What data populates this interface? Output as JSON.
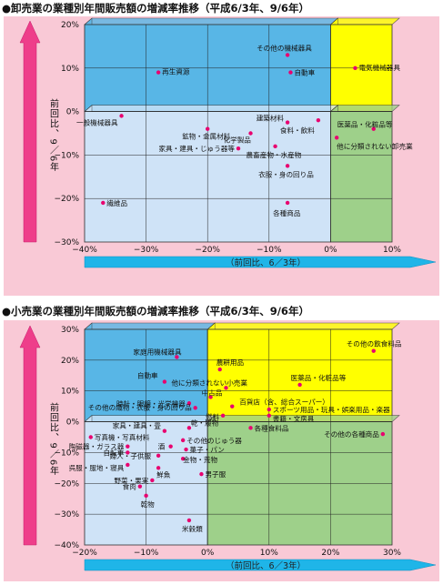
{
  "chart_data": [
    {
      "type": "scatter",
      "title": "●卸売業の業種別年間販売額の増減率推移（平成6/3年、9/6年）",
      "xlabel": "（前回比、6／3年）",
      "ylabel": "前回比、9／6年",
      "xlim": [
        -40,
        10
      ],
      "ylim": [
        -30,
        20
      ],
      "xticks": [
        "−40%",
        "−30%",
        "−20%",
        "−10%",
        "0%",
        "10%"
      ],
      "yticks": [
        "20%",
        "10%",
        "0%",
        "−10%",
        "−20%",
        "−30%"
      ],
      "colors": {
        "q1": "#ffff00",
        "q2": "#58b6e6",
        "q3": "#cfe3f7",
        "q4": "#9ed08a",
        "point": "#e8006f"
      },
      "points": [
        {
          "label": "その他の機械器具",
          "x": -7,
          "y": 13
        },
        {
          "label": "自動車",
          "x": -6.5,
          "y": 9
        },
        {
          "label": "再生資源",
          "x": -28,
          "y": 9
        },
        {
          "label": "電気機械器具",
          "x": 4,
          "y": 10
        },
        {
          "label": "一般機械器具",
          "x": -34,
          "y": -1
        },
        {
          "label": "鉱物・金属材料",
          "x": -20,
          "y": -4
        },
        {
          "label": "建築材料",
          "x": -7,
          "y": -2.5
        },
        {
          "label": "食料・飲料",
          "x": -2,
          "y": -2
        },
        {
          "label": "化学製品",
          "x": -13,
          "y": -5
        },
        {
          "label": "家具・建具・じゅう器等",
          "x": -15,
          "y": -8.5
        },
        {
          "label": "農畜産物・水産物",
          "x": -9,
          "y": -8
        },
        {
          "label": "衣服・身の回り品",
          "x": -7,
          "y": -12.5
        },
        {
          "label": "繊維品",
          "x": -37,
          "y": -21
        },
        {
          "label": "各種商品",
          "x": -7,
          "y": -21
        },
        {
          "label": "医薬品・化粧品等",
          "x": 7,
          "y": -4
        },
        {
          "label": "他に分類されない卸売業",
          "x": 1,
          "y": -6
        }
      ]
    },
    {
      "type": "scatter",
      "title": "●小売業の業種別年間販売額の増減率推移（平成6/3年、9/6年）",
      "xlabel": "（前回比、6／3年）",
      "ylabel": "前回比、9／6年",
      "xlim": [
        -20,
        30
      ],
      "ylim": [
        -40,
        30
      ],
      "xticks": [
        "−20%",
        "−10%",
        "0%",
        "10%",
        "20%",
        "30%"
      ],
      "yticks": [
        "30%",
        "20%",
        "10%",
        "0%",
        "−10%",
        "−20%",
        "−30%",
        "−40%"
      ],
      "colors": {
        "q1": "#ffff00",
        "q2": "#58b6e6",
        "q3": "#cfe3f7",
        "q4": "#9ed08a",
        "point": "#e8006f"
      },
      "points": [
        {
          "label": "その他の飲食料品",
          "x": 27,
          "y": 23
        },
        {
          "label": "家庭用機械器具",
          "x": -5,
          "y": 21
        },
        {
          "label": "農耕用品",
          "x": 2,
          "y": 17
        },
        {
          "label": "自動車",
          "x": -7,
          "y": 13
        },
        {
          "label": "他に分類されない小売業",
          "x": 3,
          "y": 11
        },
        {
          "label": "医薬品・化粧品等",
          "x": 15,
          "y": 12
        },
        {
          "label": "中古品",
          "x": 0.5,
          "y": 8
        },
        {
          "label": "時計・眼鏡・光学機器",
          "x": -3,
          "y": 6
        },
        {
          "label": "百貨店（含、総合スーパー）",
          "x": 4,
          "y": 5
        },
        {
          "label": "その他の織物・衣服・身の回り品",
          "x": -2,
          "y": 4.5
        },
        {
          "label": "スポーツ用品・玩具・娯楽用品・楽器",
          "x": 10,
          "y": 4
        },
        {
          "label": "燃料",
          "x": 2.5,
          "y": 2
        },
        {
          "label": "書籍・文房具",
          "x": 10,
          "y": 2
        },
        {
          "label": "各種食料品",
          "x": 7,
          "y": -2
        },
        {
          "label": "その他の各種商品",
          "x": 28.5,
          "y": -4
        },
        {
          "label": "家具・建具・畳",
          "x": -7,
          "y": -3
        },
        {
          "label": "乾・履物",
          "x": -3,
          "y": -2
        },
        {
          "label": "その他のじゅう器",
          "x": -4,
          "y": -6
        },
        {
          "label": "写真機・写真材料",
          "x": -19,
          "y": -5
        },
        {
          "label": "陶磁器・ガラス器",
          "x": -13,
          "y": -8
        },
        {
          "label": "酒",
          "x": -6,
          "y": -8
        },
        {
          "label": "菓子・パン",
          "x": -3.5,
          "y": -9
        },
        {
          "label": "自転車",
          "x": -13,
          "y": -10
        },
        {
          "label": "婦人・子供服",
          "x": -8,
          "y": -11
        },
        {
          "label": "金物・荒物",
          "x": -4,
          "y": -12
        },
        {
          "label": "呉服・服地・寝具",
          "x": -13,
          "y": -14
        },
        {
          "label": "鮮魚",
          "x": -8,
          "y": -15
        },
        {
          "label": "男子服",
          "x": -1,
          "y": -17
        },
        {
          "label": "野菜・果実",
          "x": -9,
          "y": -19
        },
        {
          "label": "食肉",
          "x": -11,
          "y": -21
        },
        {
          "label": "乾物",
          "x": -10,
          "y": -24
        },
        {
          "label": "米穀類",
          "x": -3,
          "y": -32
        }
      ]
    }
  ]
}
